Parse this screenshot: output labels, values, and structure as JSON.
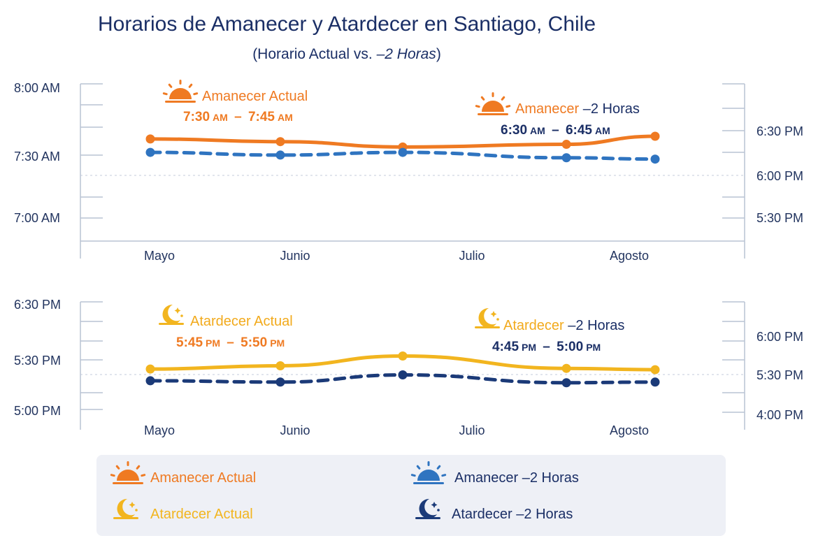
{
  "title": "Horarios de Amanecer y Atardecer en Santiago, Chile",
  "subtitle_prefix": "(Horario Actual vs. ",
  "subtitle_emph": "–2 Horas",
  "subtitle_suffix": ")",
  "colors": {
    "orange": "#ef7a22",
    "amber": "#f2b51f",
    "blue": "#2f74c0",
    "navy": "#1b3a78",
    "title": "#1b2f66",
    "legend_bg": "#eef0f6"
  },
  "chart_data": [
    {
      "type": "line",
      "title": "Amanecer",
      "categories": [
        "Mayo",
        "Junio",
        "Julio",
        "Agosto"
      ],
      "left_ticks": [
        "8:00 AM",
        "7:30 AM",
        "7:00 AM"
      ],
      "right_ticks": [
        "6:30 PM",
        "6:00 PM",
        "5:30 PM"
      ],
      "ylim": [
        6.83,
        8.0
      ],
      "series": [
        {
          "name": "Amanecer Actual",
          "style": "solid",
          "x": [
            0,
            0.85,
            1.65,
            2.72,
            3.3
          ],
          "values": [
            7.59,
            7.57,
            7.53,
            7.55,
            7.61
          ],
          "annotation_label": "Amanecer Actual",
          "annotation_range": {
            "start": "7:30",
            "start_unit": "AM",
            "end": "7:45",
            "end_unit": "AM"
          }
        },
        {
          "name": "Amanecer –2 Horas",
          "style": "dashed",
          "x": [
            0,
            0.85,
            1.65,
            2.72,
            3.3
          ],
          "values": [
            7.49,
            7.47,
            7.49,
            7.45,
            7.44
          ],
          "annotation_label_a": "Amanecer ",
          "annotation_label_b": "–2 Horas",
          "annotation_range": {
            "start": "6:30",
            "start_unit": "AM",
            "end": "6:45",
            "end_unit": "AM"
          }
        }
      ]
    },
    {
      "type": "line",
      "title": "Atardecer",
      "categories": [
        "Mayo",
        "Junio",
        "Julio",
        "Agosto"
      ],
      "left_ticks": [
        "6:30 PM",
        "5:30 PM",
        "5:00 PM"
      ],
      "right_ticks": [
        "6:00 PM",
        "5:30 PM",
        "4:00 PM"
      ],
      "ylim": [
        16.9,
        18.55
      ],
      "series": [
        {
          "name": "Atardecer Actual",
          "style": "solid",
          "x": [
            0,
            0.85,
            1.65,
            2.72,
            3.3
          ],
          "values": [
            17.52,
            17.57,
            17.72,
            17.53,
            17.51
          ],
          "annotation_label": "Atardecer Actual",
          "annotation_range": {
            "start": "5:45",
            "start_unit": "PM",
            "end": "5:50",
            "end_unit": "PM"
          }
        },
        {
          "name": "Atardecer –2 Horas",
          "style": "dashed",
          "x": [
            0,
            0.85,
            1.65,
            2.72,
            3.3
          ],
          "values": [
            17.34,
            17.32,
            17.43,
            17.31,
            17.32
          ],
          "annotation_label_a": "Atardecer ",
          "annotation_label_b": "–2 Horas",
          "annotation_range": {
            "start": "4:45",
            "start_unit": "PM",
            "end": "5:00",
            "end_unit": "PM"
          }
        }
      ]
    }
  ],
  "legend": [
    {
      "label": "Amanecer Actual",
      "icon": "sun-icon",
      "color": "#ef7a22"
    },
    {
      "label": "Amanecer –2 Horas",
      "icon": "sun-icon",
      "color": "#2f74c0"
    },
    {
      "label": "Atardecer Actual",
      "icon": "moon-icon",
      "color": "#f2b51f"
    },
    {
      "label": "Atardecer –2 Horas",
      "icon": "moon-icon",
      "color": "#1b3a78"
    }
  ]
}
